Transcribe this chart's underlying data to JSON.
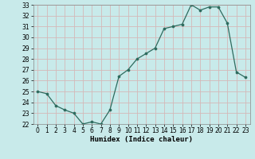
{
  "x": [
    0,
    1,
    2,
    3,
    4,
    5,
    6,
    7,
    8,
    9,
    10,
    11,
    12,
    13,
    14,
    15,
    16,
    17,
    18,
    19,
    20,
    21,
    22,
    23
  ],
  "y": [
    25.0,
    24.8,
    23.7,
    23.3,
    23.0,
    22.0,
    22.2,
    22.0,
    23.3,
    26.4,
    27.0,
    28.0,
    28.5,
    29.0,
    30.8,
    31.0,
    31.2,
    33.0,
    32.5,
    32.8,
    32.8,
    31.3,
    26.8,
    26.3
  ],
  "xlabel": "Humidex (Indice chaleur)",
  "xlim": [
    -0.5,
    23.5
  ],
  "ylim": [
    22,
    33
  ],
  "yticks": [
    22,
    23,
    24,
    25,
    26,
    27,
    28,
    29,
    30,
    31,
    32,
    33
  ],
  "xticks": [
    0,
    1,
    2,
    3,
    4,
    5,
    6,
    7,
    8,
    9,
    10,
    11,
    12,
    13,
    14,
    15,
    16,
    17,
    18,
    19,
    20,
    21,
    22,
    23
  ],
  "line_color": "#2d6b5e",
  "marker_color": "#2d6b5e",
  "bg_color": "#c8eaea",
  "grid_color": "#d4b8b8",
  "label_fontsize": 6.5,
  "tick_fontsize": 5.5
}
